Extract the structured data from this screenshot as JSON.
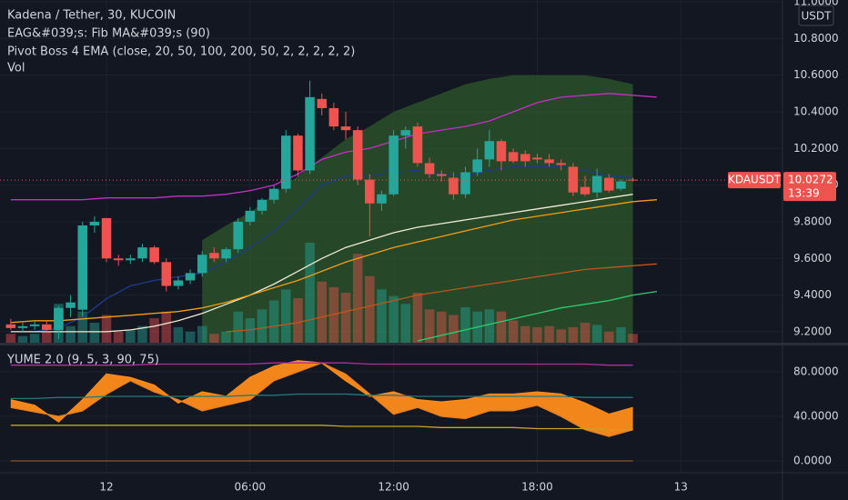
{
  "chart_data": [
    {
      "type": "candlestick",
      "title": "Kadena / Tether, 30, KUCOIN",
      "indicators": [
        "EAG&#039;s: Fib MA&#039;s (90)",
        "Pivot Boss 4 EMA (close, 20, 50, 100, 200, 50, 2, 2, 2, 2, 2)",
        "Vol"
      ],
      "symbol": "KDAUSDT",
      "currency": "USDT",
      "last_price": 10.0272,
      "countdown": "13:39",
      "up_color": "#26a69a",
      "down_color": "#ef5350",
      "x": [
        -4,
        -3.5,
        -3,
        -2.5,
        -2,
        -1.5,
        -1,
        -0.5,
        0,
        0.5,
        1,
        1.5,
        2,
        2.5,
        3,
        3.5,
        4,
        4.5,
        5,
        5.5,
        6,
        6.5,
        7,
        7.5,
        8,
        8.5,
        9,
        9.5,
        10,
        10.5,
        11,
        11.5,
        12,
        12.5,
        13,
        13.5,
        14,
        14.5,
        15,
        15.5,
        16,
        16.5,
        17,
        17.5,
        18,
        18.5,
        19,
        19.5,
        20,
        20.5,
        21,
        21.5,
        22
      ],
      "open": [
        9.24,
        9.22,
        9.23,
        9.24,
        9.21,
        9.33,
        9.32,
        9.78,
        9.82,
        9.6,
        9.59,
        9.6,
        9.66,
        9.58,
        9.45,
        9.48,
        9.52,
        9.63,
        9.6,
        9.65,
        9.8,
        9.86,
        9.92,
        9.98,
        10.27,
        10.08,
        10.47,
        10.42,
        10.32,
        10.3,
        10.03,
        9.9,
        9.95,
        10.27,
        10.32,
        10.12,
        10.06,
        10.04,
        9.95,
        10.07,
        10.14,
        10.24,
        10.18,
        10.17,
        10.15,
        10.14,
        10.12,
        10.1,
        9.99,
        9.96,
        10.04,
        9.98,
        10.03
      ],
      "high": [
        9.27,
        9.25,
        9.26,
        9.26,
        9.34,
        9.4,
        9.8,
        9.83,
        9.82,
        9.62,
        9.62,
        9.68,
        9.67,
        9.6,
        9.5,
        9.54,
        9.64,
        9.66,
        9.66,
        9.82,
        9.88,
        9.93,
        10.0,
        10.3,
        10.28,
        10.57,
        10.5,
        10.45,
        10.4,
        10.32,
        10.06,
        9.97,
        10.3,
        10.32,
        10.34,
        10.15,
        10.08,
        10.07,
        10.1,
        10.2,
        10.3,
        10.25,
        10.2,
        10.19,
        10.17,
        10.17,
        10.14,
        10.12,
        10.05,
        10.09,
        10.06,
        10.03,
        10.04
      ],
      "low": [
        9.21,
        9.2,
        9.21,
        9.2,
        9.16,
        9.28,
        9.28,
        9.74,
        9.58,
        9.56,
        9.57,
        9.58,
        9.57,
        9.42,
        9.43,
        9.46,
        9.5,
        9.58,
        9.58,
        9.63,
        9.78,
        9.84,
        9.9,
        9.96,
        10.05,
        10.06,
        10.38,
        10.3,
        10.25,
        10.0,
        9.72,
        9.86,
        9.94,
        10.2,
        10.1,
        10.04,
        10.02,
        9.92,
        9.93,
        10.05,
        10.1,
        10.08,
        10.12,
        10.1,
        10.12,
        10.1,
        10.08,
        9.94,
        9.94,
        9.93,
        9.96,
        9.97,
        10.02
      ],
      "close": [
        9.22,
        9.23,
        9.24,
        9.21,
        9.33,
        9.36,
        9.78,
        9.8,
        9.6,
        9.59,
        9.6,
        9.66,
        9.58,
        9.45,
        9.48,
        9.52,
        9.62,
        9.6,
        9.65,
        9.8,
        9.86,
        9.92,
        9.98,
        10.27,
        10.08,
        10.48,
        10.42,
        10.32,
        10.3,
        10.03,
        9.9,
        9.95,
        10.27,
        10.3,
        10.12,
        10.06,
        10.05,
        9.95,
        10.07,
        10.14,
        10.24,
        10.13,
        10.13,
        10.13,
        10.14,
        10.12,
        10.11,
        9.96,
        9.95,
        10.05,
        9.97,
        10.02,
        10.0272
      ],
      "volume": [
        8,
        6,
        8,
        10,
        35,
        15,
        28,
        18,
        25,
        10,
        12,
        15,
        22,
        28,
        14,
        10,
        15,
        8,
        10,
        28,
        22,
        30,
        38,
        48,
        40,
        90,
        55,
        50,
        45,
        80,
        60,
        48,
        42,
        35,
        45,
        30,
        28,
        25,
        32,
        28,
        30,
        28,
        20,
        15,
        14,
        15,
        12,
        14,
        18,
        16,
        10,
        14,
        8
      ],
      "cloud": {
        "color": "#2e5a2c",
        "x": [
          4,
          5,
          6,
          7,
          8,
          9,
          10,
          11,
          12,
          13,
          14,
          15,
          16,
          17,
          18,
          19,
          20,
          21,
          22
        ],
        "values": [
          9.7,
          9.78,
          9.85,
          9.95,
          10.05,
          10.15,
          10.25,
          10.32,
          10.4,
          10.45,
          10.5,
          10.55,
          10.58,
          10.6,
          10.6,
          10.6,
          10.6,
          10.58,
          10.55
        ]
      },
      "line_x": [
        -4,
        -3,
        -2,
        -1,
        0,
        1,
        2,
        3,
        4,
        5,
        6,
        7,
        8,
        9,
        10,
        11,
        12,
        13,
        14,
        15,
        16,
        17,
        18,
        19,
        20,
        21,
        22,
        23
      ],
      "lines": [
        {
          "color": "#c72ec7",
          "values": [
            9.92,
            9.92,
            9.92,
            9.92,
            9.93,
            9.93,
            9.93,
            9.94,
            9.94,
            9.95,
            9.97,
            10.0,
            10.06,
            10.14,
            10.18,
            10.2,
            10.24,
            10.28,
            10.3,
            10.32,
            10.35,
            10.4,
            10.45,
            10.48,
            10.49,
            10.5,
            10.49,
            10.48
          ]
        },
        {
          "color": "#1f3a8a",
          "values": [
            9.2,
            9.2,
            9.22,
            9.28,
            9.38,
            9.45,
            9.48,
            9.5,
            9.52,
            9.58,
            9.66,
            9.75,
            9.87,
            10.0,
            10.05,
            10.05,
            10.07,
            10.08,
            10.06,
            10.05,
            10.08,
            10.1,
            10.1,
            10.1,
            10.08,
            10.05,
            10.04,
            null
          ]
        },
        {
          "color": "#f0ead0",
          "values": [
            9.2,
            9.2,
            9.2,
            9.2,
            9.2,
            9.21,
            9.23,
            9.26,
            9.3,
            9.35,
            9.4,
            9.46,
            9.53,
            9.6,
            9.66,
            9.7,
            9.74,
            9.77,
            9.79,
            9.81,
            9.83,
            9.85,
            9.87,
            9.89,
            9.91,
            9.93,
            9.95,
            null
          ]
        },
        {
          "color": "#f39c12",
          "values": [
            9.25,
            9.26,
            9.26,
            9.27,
            9.28,
            9.29,
            9.3,
            9.31,
            9.33,
            9.36,
            9.4,
            9.44,
            9.48,
            9.53,
            9.58,
            9.62,
            9.66,
            9.69,
            9.72,
            9.75,
            9.78,
            9.81,
            9.83,
            9.85,
            9.87,
            9.89,
            9.91,
            9.92
          ]
        },
        {
          "color": "#c0561b",
          "values": [
            null,
            null,
            null,
            null,
            null,
            null,
            null,
            null,
            null,
            9.2,
            9.21,
            9.23,
            9.25,
            9.28,
            9.31,
            9.34,
            9.37,
            9.4,
            9.42,
            9.44,
            9.46,
            9.48,
            9.5,
            9.52,
            9.54,
            9.55,
            9.56,
            9.57
          ]
        },
        {
          "color": "#2ecc71",
          "values": [
            null,
            null,
            null,
            null,
            null,
            null,
            null,
            null,
            null,
            null,
            null,
            null,
            null,
            null,
            null,
            null,
            null,
            9.15,
            9.18,
            9.21,
            9.24,
            9.27,
            9.3,
            9.33,
            9.35,
            9.37,
            9.4,
            9.42
          ]
        }
      ],
      "ylim": [
        9.14,
        11.01
      ],
      "yticks": [
        {
          "value": 9.2,
          "label": "9.2000"
        },
        {
          "value": 9.4,
          "label": "9.4000"
        },
        {
          "value": 9.6,
          "label": "9.6000"
        },
        {
          "value": 9.8,
          "label": "9.8000"
        },
        {
          "value": 10.0,
          "label": "10.0000"
        },
        {
          "value": 10.2,
          "label": "10.2000"
        },
        {
          "value": 10.4,
          "label": "10.4000"
        },
        {
          "value": 10.6,
          "label": "10.6000"
        },
        {
          "value": 10.8,
          "label": "10.8000"
        },
        {
          "value": 11.0,
          "label": "11.0000"
        }
      ],
      "xlim": [
        -4.45,
        28.25
      ],
      "xticks": [
        {
          "value": 0,
          "label": "12"
        },
        {
          "value": 6,
          "label": "06:00"
        },
        {
          "value": 12,
          "label": "12:00"
        },
        {
          "value": 18,
          "label": "18:00"
        },
        {
          "value": 24,
          "label": "13"
        }
      ],
      "grid": true
    },
    {
      "type": "oscillator",
      "title": "YUME 2.0 (9, 5, 3, 90, 75)",
      "fill_color": "#ff8c1a",
      "x": [
        -4,
        -3,
        -2,
        -1,
        0,
        1,
        2,
        3,
        4,
        5,
        6,
        7,
        8,
        9,
        10,
        11,
        12,
        13,
        14,
        15,
        16,
        17,
        18,
        19,
        20,
        21,
        22
      ],
      "series": [
        {
          "color": "#ff8c1a",
          "values": [
            55,
            50,
            35,
            55,
            78,
            75,
            68,
            52,
            62,
            58,
            75,
            85,
            90,
            88,
            72,
            58,
            62,
            55,
            53,
            55,
            60,
            60,
            62,
            60,
            52,
            42,
            48
          ]
        },
        {
          "color": "#e67e22",
          "values": [
            48,
            44,
            40,
            45,
            60,
            72,
            62,
            55,
            45,
            50,
            55,
            72,
            80,
            88,
            78,
            60,
            42,
            48,
            40,
            38,
            45,
            45,
            50,
            40,
            28,
            22,
            28
          ]
        },
        {
          "color": "#b0309f",
          "values": [
            86,
            86,
            86,
            86,
            86,
            86,
            87,
            87,
            87,
            87,
            87,
            88,
            88,
            88,
            88,
            87,
            87,
            87,
            87,
            87,
            87,
            87,
            87,
            87,
            87,
            86,
            86
          ]
        },
        {
          "color": "#1f7a7a",
          "values": [
            56,
            56,
            57,
            57,
            58,
            58,
            58,
            58,
            58,
            58,
            59,
            59,
            60,
            60,
            60,
            59,
            59,
            58,
            58,
            58,
            58,
            58,
            58,
            58,
            57,
            57,
            57
          ]
        },
        {
          "color": "#c9a227",
          "values": [
            32,
            32,
            32,
            32,
            32,
            32,
            32,
            32,
            32,
            32,
            32,
            32,
            32,
            32,
            31,
            31,
            31,
            31,
            30,
            30,
            30,
            30,
            29,
            29,
            29,
            28,
            28
          ]
        },
        {
          "color": "#8a5a2a",
          "values": [
            0,
            0,
            0,
            0,
            0,
            0,
            0,
            0,
            0,
            0,
            0,
            0,
            0,
            0,
            0,
            0,
            0,
            0,
            0,
            0,
            0,
            0,
            0,
            0,
            0,
            0,
            0
          ]
        }
      ],
      "ylim": [
        -10.6,
        103.7
      ],
      "yticks": [
        {
          "value": 0,
          "label": "0.0000"
        },
        {
          "value": 40,
          "label": "40.0000"
        },
        {
          "value": 80,
          "label": "80.0000"
        }
      ]
    }
  ]
}
